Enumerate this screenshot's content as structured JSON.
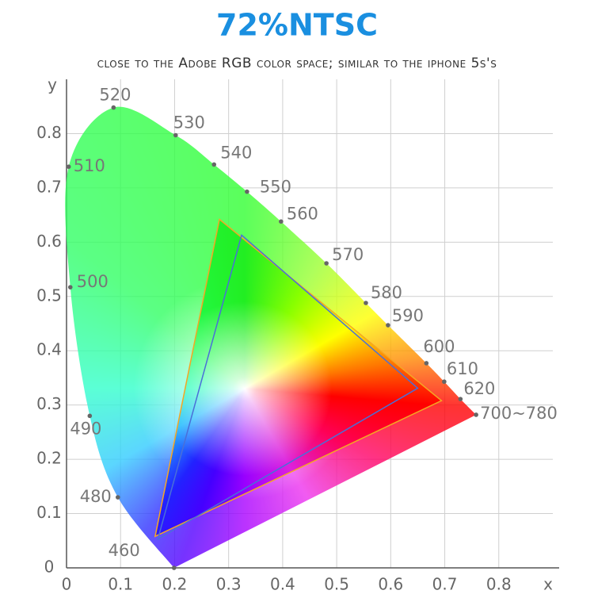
{
  "chart_data": {
    "type": "chromaticity",
    "title": "72%NTSC",
    "subtitle": "close to the Adobe RGB color space; similar to the iphone 5s's",
    "xlabel": "x",
    "ylabel": "y",
    "xlim": [
      0,
      0.9
    ],
    "ylim": [
      0,
      0.9
    ],
    "xticks": [
      0,
      0.1,
      0.2,
      0.3,
      0.4,
      0.5,
      0.6,
      0.7,
      0.8
    ],
    "yticks": [
      0,
      0.1,
      0.2,
      0.3,
      0.4,
      0.5,
      0.6,
      0.7,
      0.8
    ],
    "grid": true,
    "locus": {
      "color": "#666666",
      "labels": [
        "460",
        "480",
        "490",
        "500",
        "510",
        "520",
        "530",
        "540",
        "550",
        "560",
        "570",
        "580",
        "590",
        "600",
        "610",
        "620",
        "700~780"
      ],
      "x": [
        0.199,
        0.095,
        0.043,
        0.007,
        0.004,
        0.087,
        0.202,
        0.273,
        0.334,
        0.397,
        0.481,
        0.554,
        0.595,
        0.666,
        0.699,
        0.729,
        0.758
      ],
      "y": [
        0.0,
        0.13,
        0.28,
        0.517,
        0.739,
        0.848,
        0.797,
        0.743,
        0.693,
        0.638,
        0.561,
        0.488,
        0.447,
        0.377,
        0.343,
        0.311,
        0.282
      ]
    },
    "triangles": [
      {
        "color": "#f5a623",
        "x": [
          0.283,
          0.694,
          0.164
        ],
        "y": [
          0.642,
          0.308,
          0.058
        ]
      },
      {
        "color": "#4a6fd8",
        "x": [
          0.324,
          0.65,
          0.169
        ],
        "y": [
          0.613,
          0.331,
          0.053
        ]
      }
    ]
  }
}
